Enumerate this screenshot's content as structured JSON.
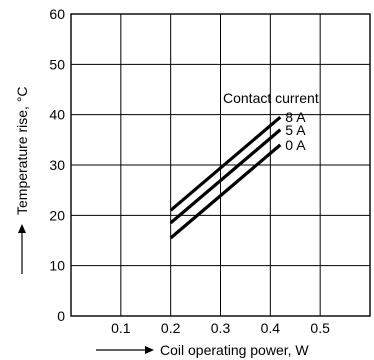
{
  "chart_data": {
    "type": "line",
    "title": "",
    "xlabel": "Coil operating power, W",
    "ylabel": "Temperature rise, °C",
    "xlim": [
      0,
      0.6
    ],
    "ylim": [
      0,
      60
    ],
    "x_ticks": [
      "0.1",
      "0.2",
      "0.3",
      "0.4",
      "0.5"
    ],
    "y_ticks": [
      "0",
      "10",
      "20",
      "30",
      "40",
      "50",
      "60"
    ],
    "grid": true,
    "legend_title": "Contact current",
    "series": [
      {
        "name": "8 A",
        "x": [
          0.2,
          0.42
        ],
        "y": [
          21,
          39.5
        ]
      },
      {
        "name": "5 A",
        "x": [
          0.2,
          0.42
        ],
        "y": [
          18.5,
          37
        ]
      },
      {
        "name": "0 A",
        "x": [
          0.2,
          0.42
        ],
        "y": [
          15.5,
          34
        ]
      }
    ]
  }
}
